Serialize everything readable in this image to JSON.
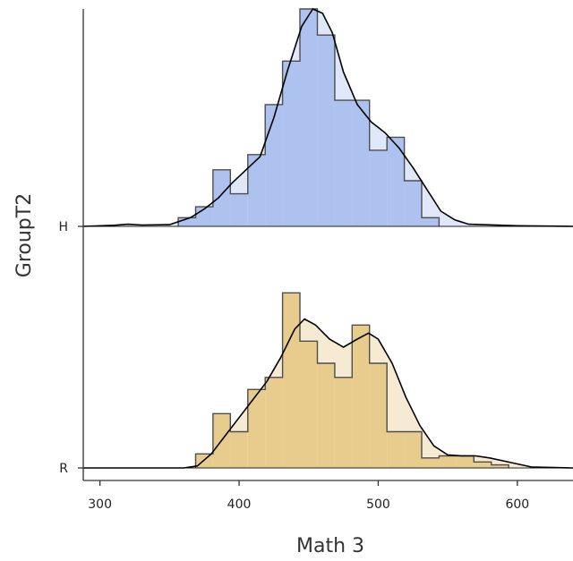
{
  "chart_data": {
    "type": "ridgeline",
    "xlabel": "Math 3",
    "ylabel": "GroupT2",
    "xlim": [
      288,
      640
    ],
    "x_ticks": [
      300,
      400,
      500,
      600
    ],
    "x_tick_labels": [
      "300",
      "400",
      "500",
      "600"
    ],
    "bin_width": 12.5,
    "groups": [
      {
        "name": "H",
        "color": "#aec2ef",
        "bins": [
          {
            "x": 362.5,
            "value": 0.04
          },
          {
            "x": 375,
            "value": 0.09
          },
          {
            "x": 387.5,
            "value": 0.26
          },
          {
            "x": 400,
            "value": 0.15
          },
          {
            "x": 412.5,
            "value": 0.33
          },
          {
            "x": 425,
            "value": 0.56
          },
          {
            "x": 437.5,
            "value": 0.76
          },
          {
            "x": 450,
            "value": 1.0
          },
          {
            "x": 462.5,
            "value": 0.88
          },
          {
            "x": 475,
            "value": 0.58
          },
          {
            "x": 487.5,
            "value": 0.58
          },
          {
            "x": 500,
            "value": 0.35
          },
          {
            "x": 512.5,
            "value": 0.41
          },
          {
            "x": 525,
            "value": 0.21
          },
          {
            "x": 537.5,
            "value": 0.04
          }
        ],
        "density": [
          [
            288,
            0.0
          ],
          [
            310,
            0.005
          ],
          [
            320,
            0.01
          ],
          [
            330,
            0.006
          ],
          [
            350,
            0.008
          ],
          [
            365,
            0.04
          ],
          [
            375,
            0.08
          ],
          [
            385,
            0.13
          ],
          [
            395,
            0.2
          ],
          [
            405,
            0.26
          ],
          [
            415,
            0.32
          ],
          [
            425,
            0.5
          ],
          [
            435,
            0.72
          ],
          [
            445,
            0.92
          ],
          [
            453,
            1.0
          ],
          [
            460,
            0.98
          ],
          [
            467,
            0.89
          ],
          [
            475,
            0.71
          ],
          [
            485,
            0.56
          ],
          [
            495,
            0.48
          ],
          [
            505,
            0.43
          ],
          [
            515,
            0.36
          ],
          [
            525,
            0.27
          ],
          [
            535,
            0.17
          ],
          [
            545,
            0.07
          ],
          [
            555,
            0.03
          ],
          [
            565,
            0.01
          ],
          [
            575,
            0.008
          ],
          [
            600,
            0.003
          ],
          [
            640,
            0.0
          ]
        ]
      },
      {
        "name": "R",
        "color": "#e8cc8e",
        "bins": [
          {
            "x": 375,
            "value": 0.07
          },
          {
            "x": 387.5,
            "value": 0.27
          },
          {
            "x": 400,
            "value": 0.18
          },
          {
            "x": 412.5,
            "value": 0.39
          },
          {
            "x": 425,
            "value": 0.45
          },
          {
            "x": 437.5,
            "value": 0.87
          },
          {
            "x": 450,
            "value": 0.63
          },
          {
            "x": 462.5,
            "value": 0.52
          },
          {
            "x": 475,
            "value": 0.45
          },
          {
            "x": 487.5,
            "value": 0.71
          },
          {
            "x": 500,
            "value": 0.52
          },
          {
            "x": 512.5,
            "value": 0.18
          },
          {
            "x": 525,
            "value": 0.18
          },
          {
            "x": 537.5,
            "value": 0.05
          },
          {
            "x": 550,
            "value": 0.06
          },
          {
            "x": 562.5,
            "value": 0.06
          },
          {
            "x": 575,
            "value": 0.03
          },
          {
            "x": 587.5,
            "value": 0.015
          }
        ],
        "density": [
          [
            288,
            0.0
          ],
          [
            360,
            0.0
          ],
          [
            370,
            0.01
          ],
          [
            380,
            0.07
          ],
          [
            390,
            0.16
          ],
          [
            400,
            0.25
          ],
          [
            410,
            0.34
          ],
          [
            420,
            0.43
          ],
          [
            430,
            0.55
          ],
          [
            440,
            0.69
          ],
          [
            447,
            0.74
          ],
          [
            455,
            0.71
          ],
          [
            465,
            0.64
          ],
          [
            475,
            0.6
          ],
          [
            485,
            0.64
          ],
          [
            493,
            0.67
          ],
          [
            500,
            0.64
          ],
          [
            510,
            0.52
          ],
          [
            520,
            0.35
          ],
          [
            530,
            0.21
          ],
          [
            540,
            0.11
          ],
          [
            550,
            0.065
          ],
          [
            560,
            0.06
          ],
          [
            570,
            0.06
          ],
          [
            580,
            0.05
          ],
          [
            590,
            0.035
          ],
          [
            600,
            0.02
          ],
          [
            610,
            0.005
          ],
          [
            640,
            0.0
          ]
        ]
      }
    ],
    "grid": false,
    "legend": "none"
  }
}
